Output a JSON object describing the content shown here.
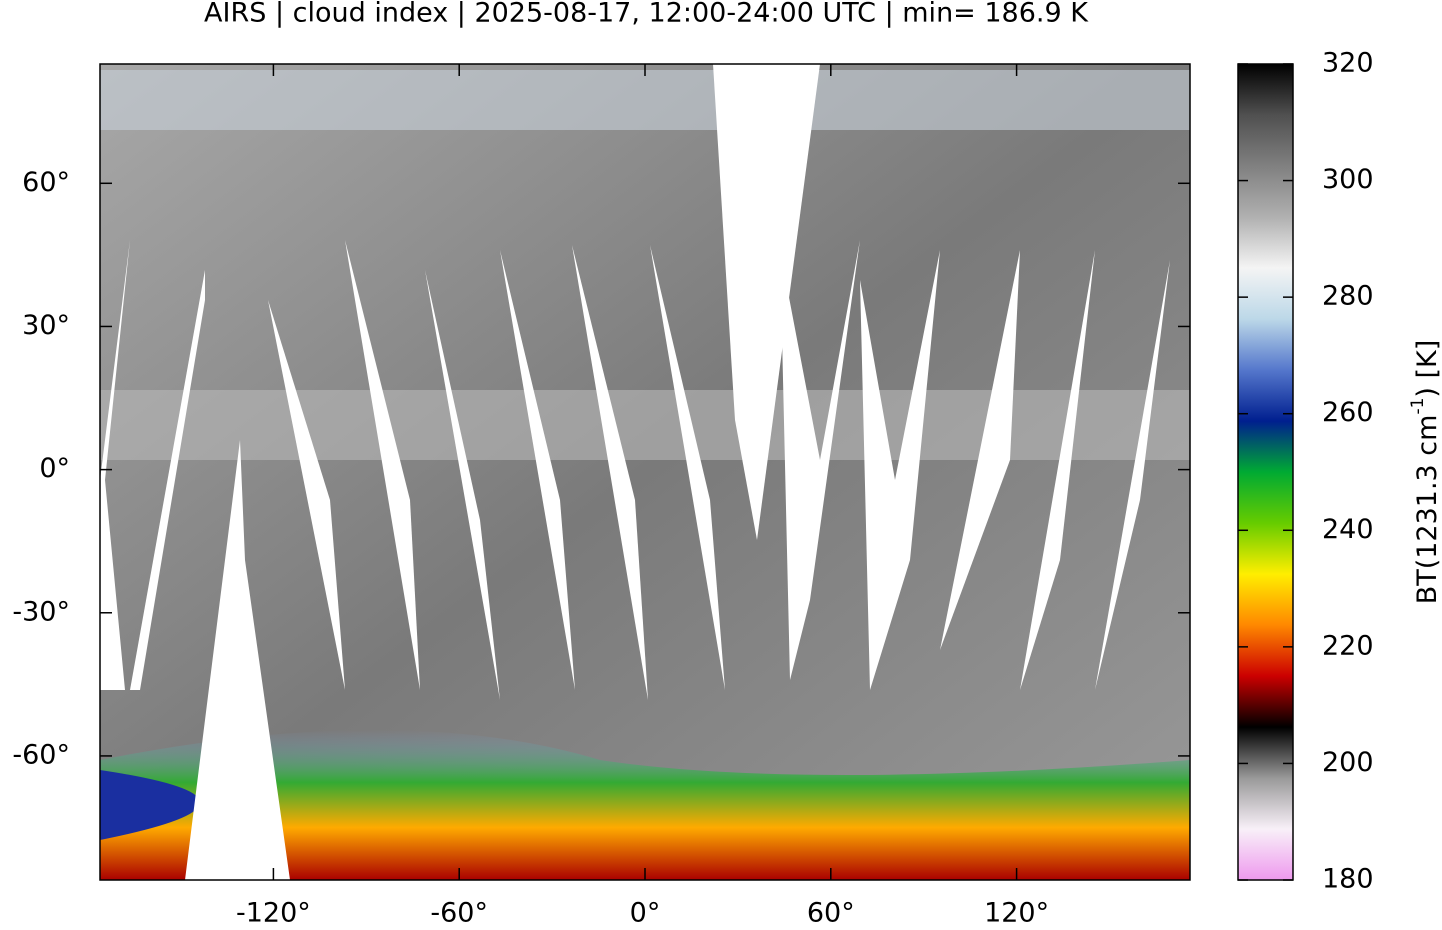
{
  "chart_data": {
    "type": "map",
    "title": "AIRS | cloud index | 2025-08-17, 12:00-24:00 UTC | min= 186.9 K",
    "xlim": [
      -176,
      176
    ],
    "ylim": [
      -86,
      85
    ],
    "xticks": [
      {
        "value": -120,
        "label": "-120°"
      },
      {
        "value": -60,
        "label": "-60°"
      },
      {
        "value": 0,
        "label": "0°"
      },
      {
        "value": 60,
        "label": "60°"
      },
      {
        "value": 120,
        "label": "120°"
      }
    ],
    "yticks": [
      {
        "value": 60,
        "label": "60°"
      },
      {
        "value": 30,
        "label": "30°"
      },
      {
        "value": 0,
        "label": "0°"
      },
      {
        "value": -30,
        "label": "-30°"
      },
      {
        "value": -60,
        "label": "-60°"
      }
    ],
    "colorbar": {
      "label": [
        "BT(1231.3 cm",
        "-1",
        ") [K]"
      ],
      "lim": [
        180,
        320
      ],
      "ticks": [
        180,
        200,
        220,
        240,
        260,
        280,
        300,
        320
      ],
      "colors": [
        "#ee99ee",
        "#f8f0f8",
        "#999999",
        "#000000",
        "#cc0000",
        "#ff8800",
        "#ffee00",
        "#66cc00",
        "#00aa33",
        "#001f8f",
        "#5577cc",
        "#bcd8e8",
        "#f4f4f4",
        "#b0b0b0",
        "#808080",
        "#505050",
        "#000000"
      ]
    }
  }
}
